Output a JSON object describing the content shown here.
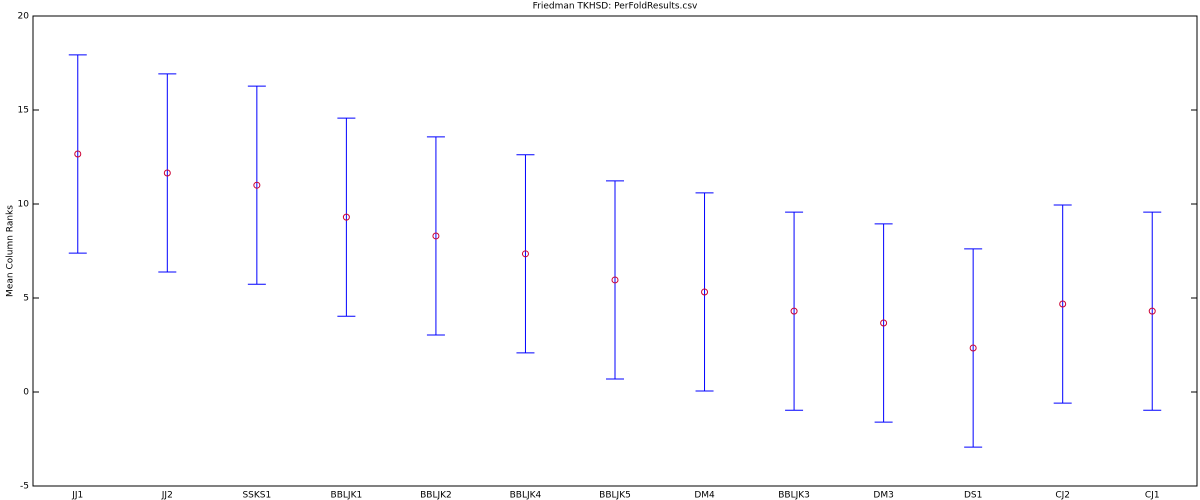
{
  "chart_data": {
    "type": "errorbar",
    "title": "Friedman TKHSD: PerFoldResults.csv",
    "ylabel": "Mean Column Ranks",
    "categories": [
      "JJ1",
      "JJ2",
      "SSKS1",
      "BBLJK1",
      "BBLJK2",
      "BBLJK4",
      "BBLJK5",
      "DM4",
      "BBLJK3",
      "DM3",
      "DS1",
      "CJ2",
      "CJ1"
    ],
    "series": [
      {
        "values": [
          12.66,
          11.65,
          11.0,
          9.3,
          8.3,
          7.35,
          5.96,
          5.32,
          4.3,
          3.67,
          2.34,
          4.68,
          4.3
        ],
        "errors": [
          5.27,
          5.27,
          5.27,
          5.27,
          5.27,
          5.27,
          5.27,
          5.27,
          5.27,
          5.27,
          5.27,
          5.27,
          5.27
        ],
        "color": "#0000ff",
        "marker_color": "#cc0033"
      }
    ],
    "ylim": [
      -5,
      20
    ],
    "yticks": [
      -5,
      0,
      5,
      10,
      15,
      20
    ]
  }
}
